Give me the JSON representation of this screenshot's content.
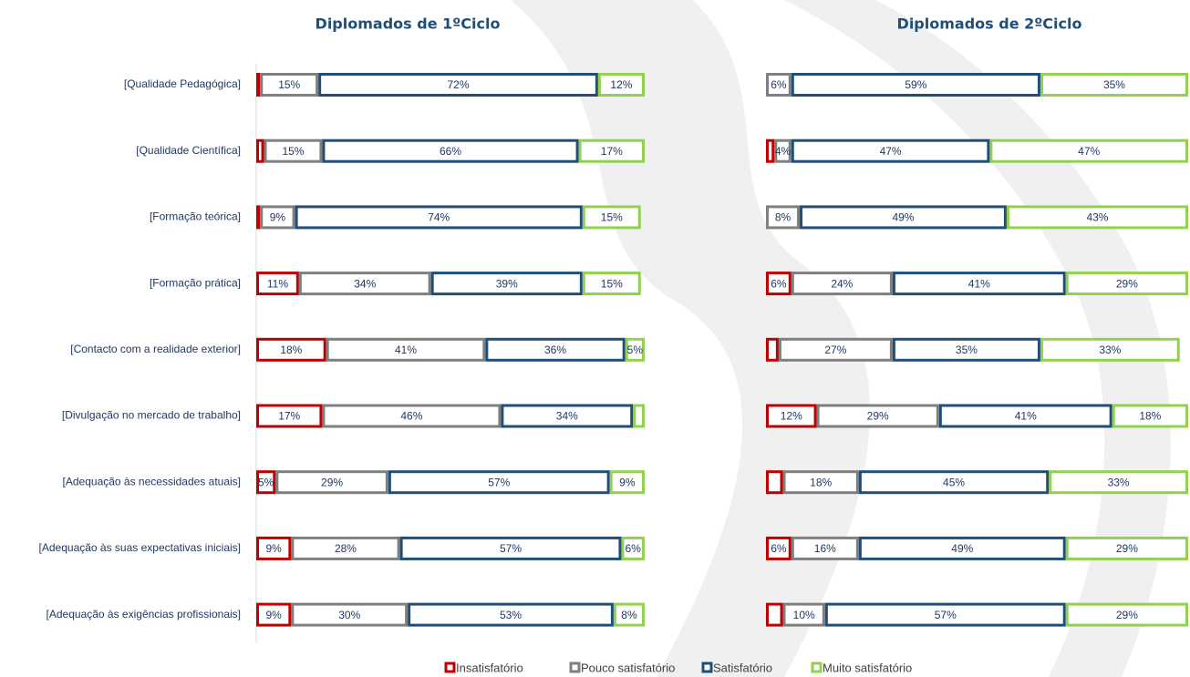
{
  "chart_data": [
    {
      "type": "stacked-bar-horizontal",
      "title": "Diplomados de 1ºCiclo",
      "categories": [
        "[Qualidade Pedagógica]",
        "[Qualidade Científica]",
        "[Formação teórica]",
        "[Formação prática]",
        "[Contacto com a realidade exterior]",
        "[Divulgação no mercado de trabalho]",
        "[Adequação às necessidades atuais]",
        "[Adequação às suas expectativas iniciais]",
        "[Adequação às exigências profissionais]"
      ],
      "xlim": [
        0,
        100
      ],
      "series": [
        {
          "name": "Insatisfatório",
          "color": "#c00000",
          "values": [
            1,
            2,
            1,
            11,
            18,
            17,
            5,
            9,
            9
          ],
          "value_labels": [
            null,
            null,
            null,
            "11%",
            "18%",
            "17%",
            "5%",
            "9%",
            "9%"
          ]
        },
        {
          "name": "Pouco satisfatório",
          "color": "#7f7f7f",
          "values": [
            15,
            15,
            9,
            34,
            41,
            46,
            29,
            28,
            30
          ],
          "value_labels": [
            "15%",
            "15%",
            "9%",
            "34%",
            "41%",
            "46%",
            "29%",
            "28%",
            "30%"
          ]
        },
        {
          "name": "Satisfatório",
          "color": "#1f4e79",
          "values": [
            72,
            66,
            74,
            39,
            36,
            34,
            57,
            57,
            53
          ],
          "value_labels": [
            "72%",
            "66%",
            "74%",
            "39%",
            "36%",
            "34%",
            "57%",
            "57%",
            "53%"
          ]
        },
        {
          "name": "Muito satisfatório",
          "color": "#92d050",
          "values": [
            12,
            17,
            15,
            15,
            5,
            3,
            9,
            6,
            8
          ],
          "value_labels": [
            "12%",
            "17%",
            "15%",
            "15%",
            "5%",
            null,
            "9%",
            "6%",
            "8%"
          ]
        }
      ]
    },
    {
      "type": "stacked-bar-horizontal",
      "title": "Diplomados de 2ºCiclo",
      "xlim": [
        0,
        100
      ],
      "series": [
        {
          "name": "Insatisfatório",
          "color": "#c00000",
          "values": [
            0,
            2,
            0,
            6,
            3,
            12,
            4,
            6,
            4
          ],
          "value_labels": [
            null,
            null,
            null,
            "6%",
            null,
            "12%",
            null,
            "6%",
            null
          ]
        },
        {
          "name": "Pouco satisfatório",
          "color": "#7f7f7f",
          "values": [
            6,
            4,
            8,
            24,
            27,
            29,
            18,
            16,
            10
          ],
          "value_labels": [
            "6%",
            "4%",
            "8%",
            "24%",
            "27%",
            "29%",
            "18%",
            "16%",
            "10%"
          ]
        },
        {
          "name": "Satisfatório",
          "color": "#1f4e79",
          "values": [
            59,
            47,
            49,
            41,
            35,
            41,
            45,
            49,
            57
          ],
          "value_labels": [
            "59%",
            "47%",
            "49%",
            "41%",
            "35%",
            "41%",
            "45%",
            "49%",
            "57%"
          ]
        },
        {
          "name": "Muito satisfatório",
          "color": "#92d050",
          "values": [
            35,
            47,
            43,
            29,
            33,
            18,
            33,
            29,
            29
          ],
          "value_labels": [
            "35%",
            "47%",
            "43%",
            "29%",
            "33%",
            "18%",
            "33%",
            "29%",
            "29%"
          ]
        }
      ]
    }
  ]
}
